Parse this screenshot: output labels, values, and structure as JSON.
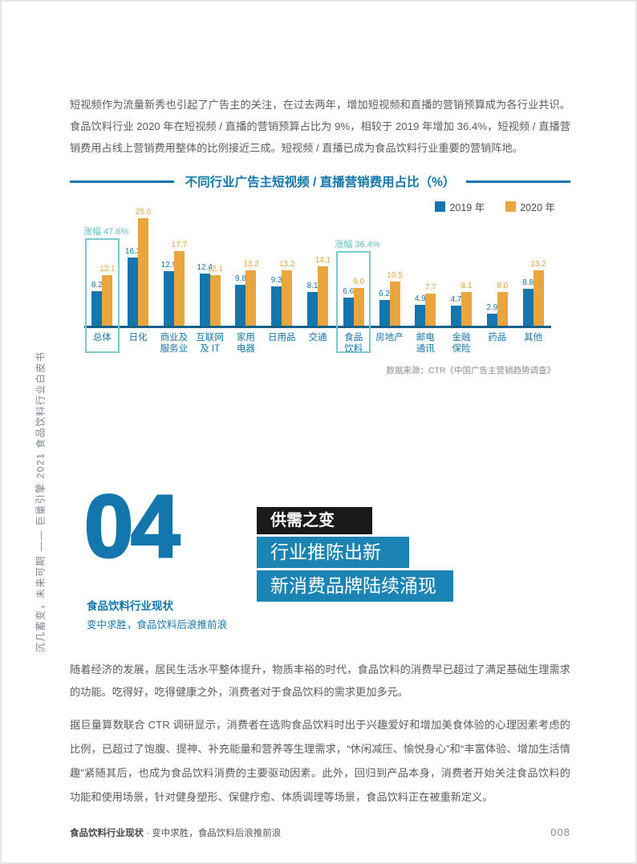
{
  "page": {
    "sidebar_vertical_text": "沉几蓄变，未来可期 —— 巨量引擎 2021 食品饮料行业白皮书",
    "intro_paragraph": "短视频作为流量新秀也引起了广告主的关注，在过去两年，增加短视频和直播的营销预算成为各行业共识。食品饮料行业 2020 年在短视频 / 直播的营销预算占比为 9%，相较于 2019 年增加 36.4%，短视频 / 直播营销费用占线上营销费用整体的比例接近三成。短视频 / 直播已成为食品饮料行业重要的营销阵地。"
  },
  "chart_data": {
    "type": "bar",
    "title": "不同行业广告主短视频 / 直播营销费用占比（%）",
    "categories": [
      "总体",
      "日化",
      "商业及服务业",
      "互联网及IT",
      "家用电器",
      "日用品",
      "交通",
      "食品饮料",
      "房地产",
      "邮电通讯",
      "金融保险",
      "药品",
      "其他"
    ],
    "category_lines": [
      [
        "总体"
      ],
      [
        "日化"
      ],
      [
        "商业及",
        "服务业"
      ],
      [
        "互联网",
        "及 IT"
      ],
      [
        "家用",
        "电器"
      ],
      [
        "日用品"
      ],
      [
        "交通"
      ],
      [
        "食品",
        "饮料"
      ],
      [
        "房地产"
      ],
      [
        "邮电",
        "通讯"
      ],
      [
        "金融",
        "保险"
      ],
      [
        "药品"
      ],
      [
        "其他"
      ]
    ],
    "series": [
      {
        "name": "2019 年",
        "color": "#1377ad",
        "values": [
          8.2,
          16.3,
          12.9,
          12.4,
          9.8,
          9.3,
          8.1,
          6.6,
          6.2,
          4.9,
          4.7,
          2.9,
          8.8
        ]
      },
      {
        "name": "2020 年",
        "color": "#e9a63e",
        "values": [
          12.1,
          25.6,
          17.7,
          12.1,
          13.2,
          13.2,
          14.1,
          9.0,
          10.5,
          7.7,
          8.1,
          8.0,
          13.2
        ]
      }
    ],
    "ylim": [
      0,
      25.6
    ],
    "grid": false,
    "legend_position": "top-right",
    "annotations": [
      {
        "text": "涨幅 47.6%",
        "category_index": 0
      },
      {
        "text": "涨幅 36.4%",
        "category_index": 7
      }
    ],
    "highlighted_categories": [
      0,
      7
    ],
    "highlight_color": "#7cc8ce",
    "source": "数据来源：CTR《中国广告主营销趋势调查》"
  },
  "section": {
    "number": "04",
    "heading": "食品饮料行业现状",
    "subheading": "变中求胜，食品饮料后浪推前浪",
    "banners": [
      {
        "text": "供需之变",
        "bg": "#1a1a1a"
      },
      {
        "text": "行业推陈出新",
        "bg": "#1b84b4"
      },
      {
        "text": "新消费品牌陆续涌现",
        "bg": "#1b84b4"
      }
    ]
  },
  "body": {
    "paragraph1": "随着经济的发展，居民生活水平整体提升，物质丰裕的时代，食品饮料的消费早已超过了满足基础生理需求的功能。吃得好，吃得健康之外，消费者对于食品饮料的需求更加多元。",
    "paragraph2": "据巨量算数联合 CTR 调研显示，消费者在选购食品饮料时出于兴趣爱好和增加美食体验的心理因素考虑的比例，已超过了饱腹、提神、补充能量和营养等生理需求，“休闲减压、愉悦身心”和“丰富体验、增加生活情趣”紧随其后，也成为食品饮料消费的主要驱动因素。此外，回归到产品本身，消费者开始关注食品饮料的功能和使用场景，针对健身塑形、保健疗愈、体质调理等场景，食品饮料正在被重新定义。"
  },
  "footer": {
    "left_bold": "食品饮料行业现状",
    "left_rest": " · 变中求胜，食品饮料后浪推前浪",
    "page_number": "008"
  }
}
